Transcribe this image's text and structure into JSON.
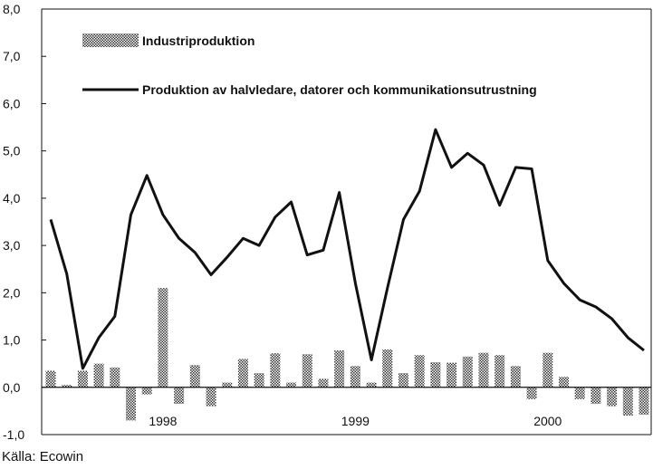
{
  "chart_data": {
    "type": "bar+line",
    "y_ticks": [
      "8,0",
      "7,0",
      "6,0",
      "5,0",
      "4,0",
      "3,0",
      "2,0",
      "1,0",
      "0,0",
      "-1,0"
    ],
    "ylim": [
      -1.0,
      8.0
    ],
    "x_tick_labels": [
      "1998",
      "1999",
      "2000"
    ],
    "grid": false,
    "legend_placement": "top",
    "source": "Källa: Ecowin",
    "series": [
      {
        "name": "Industriproduktion",
        "kind": "bar",
        "pattern": "checkered",
        "values": [
          0.35,
          0.05,
          0.35,
          0.5,
          0.42,
          -0.7,
          -0.15,
          2.1,
          -0.35,
          0.47,
          -0.4,
          0.1,
          0.6,
          0.3,
          0.72,
          0.1,
          0.7,
          0.18,
          0.78,
          0.45,
          0.1,
          0.8,
          0.3,
          0.68,
          0.53,
          0.52,
          0.65,
          0.73,
          0.68,
          0.45,
          -0.25,
          0.73,
          0.22,
          -0.25,
          -0.35,
          -0.4,
          -0.6,
          -0.58
        ]
      },
      {
        "name": "Produktion av halvledare, datorer och kommunikationsutrustning",
        "kind": "line",
        "values": [
          3.55,
          2.4,
          0.4,
          1.05,
          1.5,
          3.65,
          4.48,
          3.65,
          3.15,
          2.85,
          2.38,
          2.75,
          3.15,
          3.0,
          3.6,
          3.92,
          2.8,
          2.9,
          4.12,
          2.2,
          0.58,
          2.1,
          3.55,
          4.15,
          5.45,
          4.65,
          4.95,
          4.7,
          3.85,
          4.65,
          4.62,
          2.68,
          2.2,
          1.85,
          1.7,
          1.45,
          1.05,
          0.78
        ]
      }
    ],
    "x_label_positions": {
      "1998": 7,
      "1999": 19,
      "2000": 31
    }
  }
}
